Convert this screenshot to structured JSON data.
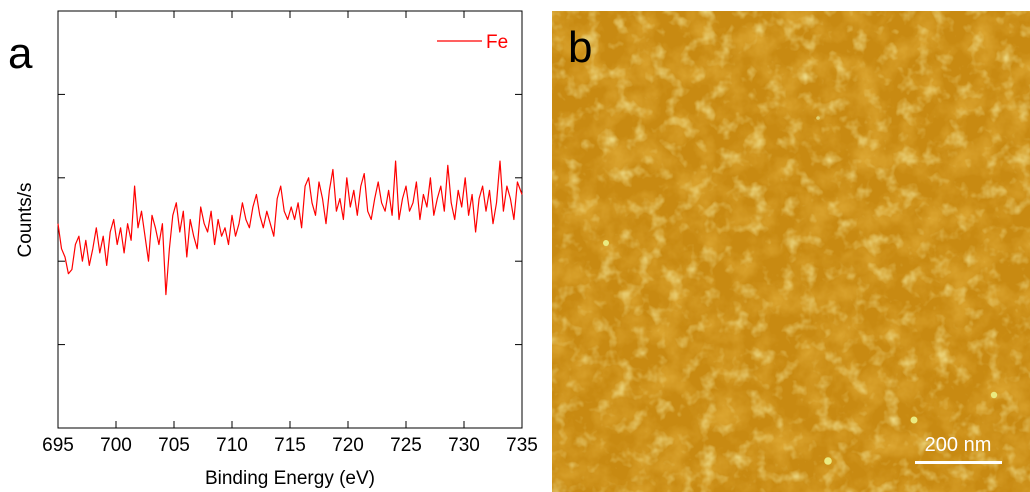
{
  "panels": {
    "a_label": "a",
    "b_label": "b"
  },
  "chart_data": {
    "type": "line",
    "title": "",
    "xlabel": "Binding Energy (eV)",
    "ylabel": "Counts/s",
    "xlim": [
      695,
      735
    ],
    "ylim": [
      0,
      5
    ],
    "x_ticks": [
      695,
      700,
      705,
      710,
      715,
      720,
      725,
      730,
      735
    ],
    "y_tick_labels_shown": false,
    "grid": false,
    "legend": {
      "position": "top-right"
    },
    "color": "#ff0000",
    "series": [
      {
        "name": "Fe",
        "x": [
          695.0,
          695.3,
          695.6,
          695.9,
          696.2,
          696.5,
          696.8,
          697.1,
          697.4,
          697.7,
          698.0,
          698.3,
          698.6,
          698.9,
          699.2,
          699.5,
          699.8,
          700.1,
          700.4,
          700.7,
          701.0,
          701.3,
          701.6,
          701.9,
          702.2,
          702.5,
          702.8,
          703.1,
          703.4,
          703.7,
          704.0,
          704.3,
          704.6,
          704.9,
          705.2,
          705.5,
          705.8,
          706.1,
          706.4,
          706.7,
          707.0,
          707.3,
          707.6,
          707.9,
          708.2,
          708.5,
          708.8,
          709.1,
          709.4,
          709.7,
          710.0,
          710.3,
          710.6,
          710.9,
          711.2,
          711.5,
          711.8,
          712.1,
          712.4,
          712.7,
          713.0,
          713.3,
          713.6,
          713.9,
          714.2,
          714.5,
          714.8,
          715.1,
          715.4,
          715.7,
          716.0,
          716.3,
          716.6,
          716.9,
          717.2,
          717.5,
          717.8,
          718.1,
          718.4,
          718.7,
          719.0,
          719.3,
          719.6,
          719.9,
          720.2,
          720.5,
          720.8,
          721.1,
          721.4,
          721.7,
          722.0,
          722.3,
          722.6,
          722.9,
          723.2,
          723.5,
          723.8,
          724.1,
          724.4,
          724.7,
          725.0,
          725.3,
          725.6,
          725.9,
          726.2,
          726.5,
          726.8,
          727.1,
          727.4,
          727.7,
          728.0,
          728.3,
          728.6,
          728.9,
          729.2,
          729.5,
          729.8,
          730.1,
          730.4,
          730.7,
          731.0,
          731.3,
          731.6,
          731.9,
          732.2,
          732.5,
          732.8,
          733.1,
          733.4,
          733.7,
          734.0,
          734.3,
          734.6,
          735.0
        ],
        "y": [
          2.45,
          2.15,
          2.05,
          1.85,
          1.9,
          2.2,
          2.3,
          2.0,
          2.25,
          1.95,
          2.15,
          2.4,
          2.1,
          2.3,
          1.95,
          2.35,
          2.5,
          2.2,
          2.4,
          2.1,
          2.45,
          2.25,
          2.9,
          2.4,
          2.6,
          2.3,
          2.0,
          2.55,
          2.4,
          2.2,
          2.45,
          1.6,
          2.15,
          2.55,
          2.7,
          2.35,
          2.6,
          2.05,
          2.5,
          2.3,
          2.15,
          2.65,
          2.45,
          2.35,
          2.6,
          2.2,
          2.5,
          2.3,
          2.4,
          2.2,
          2.55,
          2.3,
          2.45,
          2.7,
          2.5,
          2.4,
          2.65,
          2.8,
          2.55,
          2.4,
          2.6,
          2.45,
          2.3,
          2.75,
          2.9,
          2.6,
          2.5,
          2.65,
          2.5,
          2.7,
          2.4,
          2.9,
          3.0,
          2.7,
          2.55,
          2.95,
          2.75,
          2.45,
          2.85,
          3.1,
          2.6,
          2.75,
          2.5,
          3.0,
          2.65,
          2.85,
          2.55,
          2.9,
          3.05,
          2.6,
          2.5,
          2.75,
          2.95,
          2.7,
          2.6,
          2.85,
          2.55,
          3.2,
          2.5,
          2.75,
          2.9,
          2.6,
          2.7,
          2.95,
          2.5,
          2.8,
          2.65,
          3.0,
          2.55,
          2.75,
          2.9,
          2.6,
          3.15,
          2.7,
          2.5,
          2.85,
          2.65,
          3.0,
          2.55,
          2.8,
          2.35,
          2.75,
          2.9,
          2.6,
          2.85,
          2.45,
          2.7,
          3.2,
          2.6,
          2.9,
          2.75,
          2.5,
          2.95,
          2.8
        ]
      }
    ]
  },
  "afm_image": {
    "colors": {
      "base": "#c88a12",
      "dark": "#a85a0c",
      "light": "#d8b040",
      "highlight": "#f0f080"
    },
    "scale_bar": {
      "label": "200 nm",
      "color": "#ffffff"
    }
  }
}
